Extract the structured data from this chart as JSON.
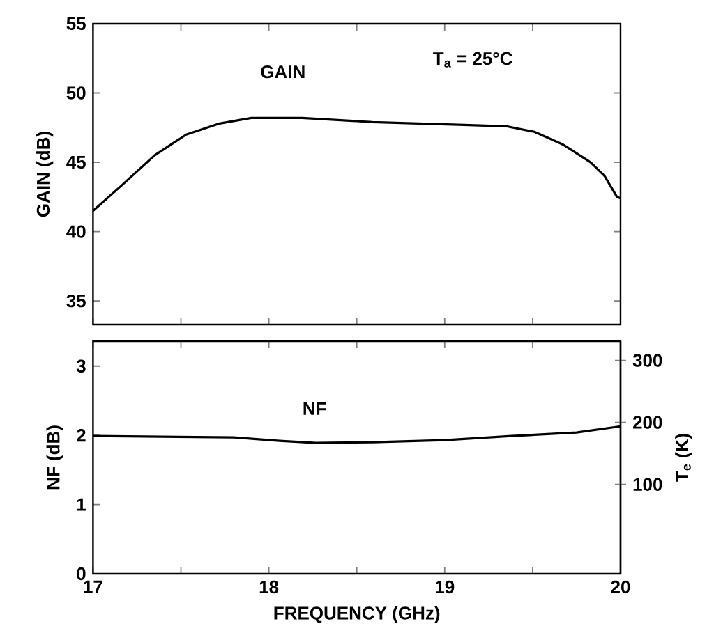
{
  "chart_data": [
    {
      "type": "line",
      "ylabel": "GAIN (dB)",
      "annotations": [
        "T$_{a}$ = 25°C"
      ],
      "xlim": [
        17,
        20
      ],
      "xticks": [
        {
          "value": 17,
          "label": null
        },
        {
          "value": 17.5,
          "label": null
        },
        {
          "value": 18,
          "label": null
        },
        {
          "value": 18.5,
          "label": null
        },
        {
          "value": 19,
          "label": null
        },
        {
          "value": 19.5,
          "label": null
        },
        {
          "value": 20,
          "label": null
        }
      ],
      "ylim": [
        33.3,
        55
      ],
      "yticks": [
        35,
        40,
        45,
        50,
        55
      ],
      "tick_labels": "y",
      "grid": false,
      "legend": false,
      "series": [
        {
          "name": "GAIN",
          "color": "#000000",
          "x": [
            17.0,
            17.16,
            17.35,
            17.53,
            17.72,
            17.9,
            18.19,
            18.59,
            18.85,
            19.11,
            19.35,
            19.51,
            19.67,
            19.83,
            19.91,
            19.98,
            20.0
          ],
          "values": [
            41.5,
            43.3,
            45.5,
            47.0,
            47.8,
            48.2,
            48.2,
            47.9,
            47.8,
            47.7,
            47.6,
            47.2,
            46.3,
            45.0,
            44.0,
            42.5,
            42.4
          ]
        }
      ]
    },
    {
      "type": "line",
      "xlabel": "FREQUENCY (GHz)",
      "ylabel": "NF (dB)",
      "y2label": "T$_{e}$ (K)",
      "xlim": [
        17,
        20
      ],
      "xticks": [
        17,
        {
          "value": 17.5,
          "label": null
        },
        18,
        {
          "value": 18.5,
          "label": null
        },
        19,
        {
          "value": 19.5,
          "label": null
        },
        20
      ],
      "ylim": [
        0,
        3.36
      ],
      "yticks": [
        0,
        1,
        2,
        3
      ],
      "y2lim": [
        -44,
        331
      ],
      "y2ticks": [
        100,
        200,
        300
      ],
      "grid": false,
      "legend": false,
      "series": [
        {
          "name": "NF",
          "color": "#000000",
          "x": [
            17.0,
            17.8,
            18.06,
            18.27,
            18.59,
            19.0,
            19.38,
            19.75,
            20.0
          ],
          "values": [
            1.99,
            1.97,
            1.92,
            1.89,
            1.9,
            1.93,
            1.99,
            2.04,
            2.13
          ]
        }
      ]
    }
  ]
}
